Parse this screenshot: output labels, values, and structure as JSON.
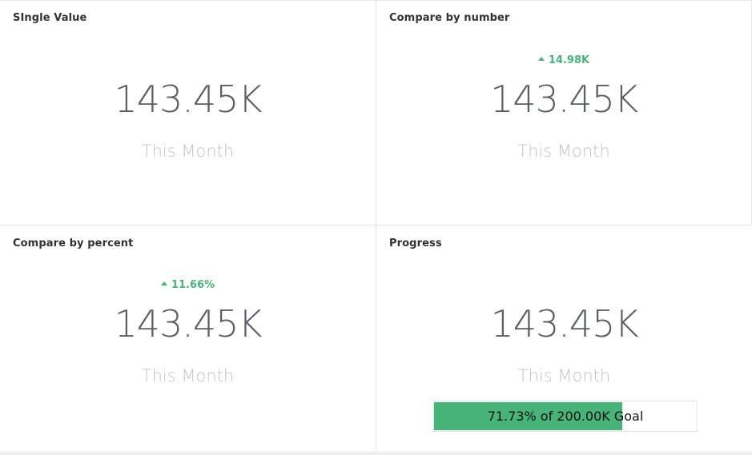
{
  "panels": [
    {
      "title": "SIngle Value",
      "value": "143.45K",
      "subtitle": "This Month"
    },
    {
      "title": "Compare by number",
      "delta": "14.98K",
      "delta_direction": "up",
      "value": "143.45K",
      "subtitle": "This Month"
    },
    {
      "title": "Compare by percent",
      "delta": "11.66%",
      "delta_direction": "up",
      "value": "143.45K",
      "subtitle": "This Month"
    },
    {
      "title": "Progress",
      "value": "143.45K",
      "subtitle": "This Month",
      "progress_label": "71.73% of 200.00K Goal",
      "progress_fraction": 0.7173
    }
  ],
  "colors": {
    "positive": "#47b47a",
    "value_text": "#5a5f66",
    "subtitle_text": "#c4c4c4"
  },
  "icons": {
    "delta_up": "triangle-up-icon"
  }
}
